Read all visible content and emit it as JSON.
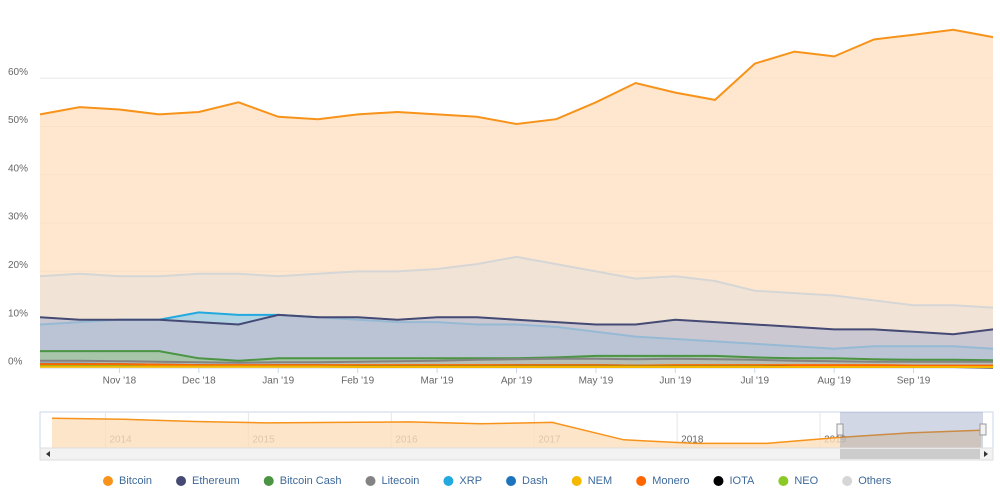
{
  "chart_data": {
    "type": "area",
    "categories": [
      null,
      null,
      "Nov '18",
      null,
      "Dec '18",
      null,
      "Jan '19",
      null,
      "Feb '19",
      null,
      "Mar '19",
      null,
      "Apr '19",
      null,
      "May '19",
      null,
      "Jun '19",
      null,
      "Jul '19",
      null,
      "Aug '19",
      null,
      "Sep '19",
      null,
      null
    ],
    "ylim": [
      0,
      71
    ],
    "yticks": [
      {
        "value": 0,
        "label": "0%"
      },
      {
        "value": 10,
        "label": "10%"
      },
      {
        "value": 20,
        "label": "20%"
      },
      {
        "value": 30,
        "label": "30%"
      },
      {
        "value": 40,
        "label": "40%"
      },
      {
        "value": 50,
        "label": "50%"
      },
      {
        "value": 60,
        "label": "60%"
      }
    ],
    "grid": true,
    "series": [
      {
        "name": "Bitcoin",
        "color": "#f7931a",
        "fill": "#fddfbd",
        "values": [
          52.5,
          54,
          53.5,
          52.5,
          53,
          55,
          52,
          51.5,
          52.5,
          53,
          52.5,
          52,
          50.5,
          51.5,
          55,
          59,
          57,
          55.5,
          63,
          65.5,
          64.5,
          68,
          69,
          70,
          68.5
        ]
      },
      {
        "name": "Ethereum",
        "color": "#454a75",
        "fill": "#bdbfd0",
        "values": [
          10.5,
          10,
          10,
          10,
          9.5,
          9,
          11,
          10.5,
          10.5,
          10,
          10.5,
          10.5,
          10,
          9.5,
          9,
          9,
          10,
          9.5,
          9,
          8.5,
          8,
          8,
          7.5,
          7,
          8
        ]
      },
      {
        "name": "Bitcoin Cash",
        "color": "#4b9443",
        "fill": "#9fc59a",
        "values": [
          3.5,
          3.5,
          3.5,
          3.5,
          2,
          1.5,
          2,
          2,
          2,
          2,
          2,
          2,
          2,
          2.2,
          2.5,
          2.5,
          2.5,
          2.5,
          2.2,
          2,
          2,
          1.8,
          1.7,
          1.7,
          1.6
        ]
      },
      {
        "name": "Litecoin",
        "color": "#838383",
        "fill": "#bbbbbb",
        "values": [
          1.5,
          1.5,
          1.4,
          1.3,
          1.2,
          1.1,
          1.2,
          1.2,
          1.3,
          1.4,
          1.5,
          1.7,
          1.8,
          1.9,
          1.9,
          1.8,
          1.9,
          1.8,
          1.7,
          1.5,
          1.4,
          1.3,
          1.3,
          1.3,
          1.3
        ]
      },
      {
        "name": "XRP",
        "color": "#23a9e0",
        "fill": "#9ccde6",
        "values": [
          9,
          9.5,
          10,
          10,
          11.5,
          11,
          11,
          10.5,
          10,
          9.5,
          9.5,
          9,
          9,
          8.5,
          7.5,
          6.5,
          6,
          5.5,
          5,
          4.5,
          4,
          4.5,
          4.5,
          4.5,
          4
        ]
      },
      {
        "name": "Dash",
        "color": "#1c75bc",
        "fill": "#8fb8de",
        "values": [
          0.9,
          0.9,
          0.8,
          0.7,
          0.6,
          0.5,
          0.6,
          0.6,
          0.5,
          0.5,
          0.5,
          0.5,
          0.6,
          0.6,
          0.6,
          0.5,
          0.5,
          0.5,
          0.4,
          0.4,
          0.4,
          0.4,
          0.4,
          0.4,
          0.4
        ]
      },
      {
        "name": "NEM",
        "color": "#f5b800",
        "fill": "#f9dd80",
        "values": [
          0.3,
          0.3,
          0.3,
          0.3,
          0.3,
          0.3,
          0.3,
          0.3,
          0.2,
          0.2,
          0.2,
          0.2,
          0.2,
          0.2,
          0.2,
          0.2,
          0.2,
          0.2,
          0.2,
          0.2,
          0.2,
          0.2,
          0.2,
          0.2,
          0.2
        ]
      },
      {
        "name": "Monero",
        "color": "#ff6600",
        "fill": "#ffb380",
        "values": [
          0.8,
          0.8,
          0.8,
          0.7,
          0.6,
          0.6,
          0.6,
          0.6,
          0.6,
          0.6,
          0.6,
          0.6,
          0.6,
          0.6,
          0.6,
          0.5,
          0.6,
          0.6,
          0.6,
          0.6,
          0.6,
          0.6,
          0.5,
          0.5,
          0.5
        ]
      },
      {
        "name": "IOTA",
        "color": "#000000",
        "fill": "#808080",
        "values": [
          0.4,
          0.4,
          0.4,
          0.3,
          0.3,
          0.3,
          0.3,
          0.3,
          0.3,
          0.3,
          0.3,
          0.3,
          0.3,
          0.3,
          0.3,
          0.3,
          0.3,
          0.3,
          0.3,
          0.2,
          0.2,
          0.2,
          0.2,
          0.2,
          0.1
        ]
      },
      {
        "name": "NEO",
        "color": "#8ac926",
        "fill": "#c4e492",
        "values": [
          0.4,
          0.4,
          0.4,
          0.3,
          0.3,
          0.3,
          0.3,
          0.3,
          0.3,
          0.3,
          0.3,
          0.3,
          0.3,
          0.3,
          0.3,
          0.3,
          0.3,
          0.3,
          0.3,
          0.2,
          0.2,
          0.2,
          0.2,
          0.2,
          0.2
        ]
      },
      {
        "name": "Others",
        "color": "#d6d6d6",
        "fill": "#ece3d8",
        "values": [
          19,
          19.5,
          19,
          19,
          19.5,
          19.5,
          19,
          19.5,
          20,
          20,
          20.5,
          21.5,
          23,
          21.5,
          20,
          18.5,
          19,
          18,
          16,
          15.5,
          15,
          14,
          13,
          13,
          12.5
        ]
      }
    ],
    "navigator": {
      "categories": [
        null,
        "2014",
        null,
        "2015",
        null,
        "2016",
        null,
        "2017",
        null,
        "2018",
        null,
        "2019",
        null,
        null
      ],
      "values": [
        95,
        93,
        88,
        85,
        86,
        87,
        83,
        86,
        48,
        40,
        40,
        53,
        63,
        69
      ],
      "ylim": [
        30,
        100
      ]
    }
  }
}
